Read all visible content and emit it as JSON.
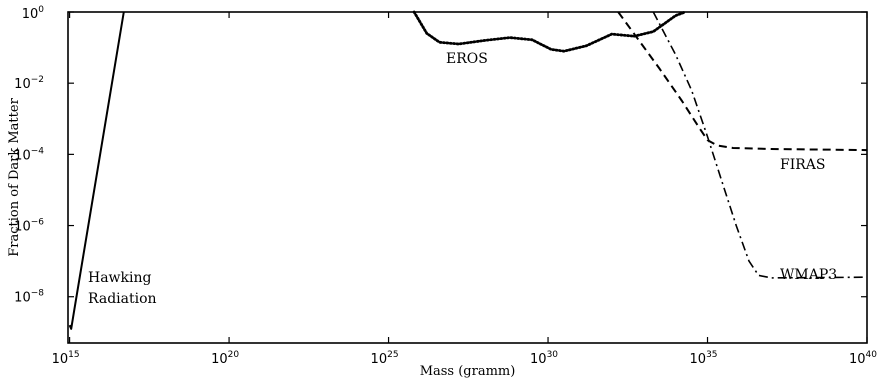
{
  "chart_data": {
    "type": "line",
    "xlabel": "Mass (gramm)",
    "ylabel": "Fraction of Dark Matter",
    "xscale": "log",
    "yscale": "log",
    "xlim_exp": [
      14.95,
      40.0
    ],
    "ylim_exp": [
      -9.3,
      0
    ],
    "x_ticks": [
      {
        "base": "10",
        "exp": "15",
        "value": 15
      },
      {
        "base": "10",
        "exp": "20",
        "value": 20
      },
      {
        "base": "10",
        "exp": "25",
        "value": 25
      },
      {
        "base": "10",
        "exp": "30",
        "value": 30
      },
      {
        "base": "10",
        "exp": "35",
        "value": 35
      },
      {
        "base": "10",
        "exp": "40",
        "value": 40
      }
    ],
    "y_ticks": [
      {
        "base": "10",
        "exp": "0",
        "value": 0
      },
      {
        "base": "10",
        "exp": "−2",
        "value": -2
      },
      {
        "base": "10",
        "exp": "−4",
        "value": -4
      },
      {
        "base": "10",
        "exp": "−6",
        "value": -6
      },
      {
        "base": "10",
        "exp": "−8",
        "value": -8
      }
    ],
    "series": [
      {
        "label_lines": [
          "Hawking",
          "Radiation"
        ],
        "style": "solid",
        "points": [
          [
            15.0,
            -8.8
          ],
          [
            15.05,
            -8.9
          ],
          [
            15.15,
            -8.35
          ],
          [
            16.7,
            0
          ]
        ]
      },
      {
        "label_lines": [
          "EROS"
        ],
        "style": "dotted",
        "points": [
          [
            25.8,
            0
          ],
          [
            26.2,
            -0.6
          ],
          [
            26.6,
            -0.85
          ],
          [
            27.2,
            -0.9
          ],
          [
            28.0,
            -0.8
          ],
          [
            28.8,
            -0.72
          ],
          [
            29.5,
            -0.78
          ],
          [
            30.1,
            -1.05
          ],
          [
            30.5,
            -1.1
          ],
          [
            31.2,
            -0.95
          ],
          [
            32.0,
            -0.62
          ],
          [
            32.7,
            -0.68
          ],
          [
            33.3,
            -0.55
          ],
          [
            34.0,
            -0.1
          ],
          [
            34.3,
            0
          ]
        ]
      },
      {
        "label_lines": [
          "FIRAS"
        ],
        "style": "dashed",
        "points": [
          [
            32.2,
            0
          ],
          [
            33.5,
            -1.6
          ],
          [
            34.2,
            -2.5
          ],
          [
            34.7,
            -3.2
          ],
          [
            35.0,
            -3.6
          ],
          [
            35.3,
            -3.75
          ],
          [
            35.8,
            -3.82
          ],
          [
            37.0,
            -3.85
          ],
          [
            40.0,
            -3.88
          ]
        ]
      },
      {
        "label_lines": [
          "WMAP3"
        ],
        "style": "dashdot",
        "points": [
          [
            33.3,
            0
          ],
          [
            34.0,
            -1.2
          ],
          [
            34.5,
            -2.2
          ],
          [
            35.0,
            -3.5
          ],
          [
            35.5,
            -4.9
          ],
          [
            35.9,
            -6.0
          ],
          [
            36.3,
            -7.0
          ],
          [
            36.6,
            -7.4
          ],
          [
            37.0,
            -7.47
          ],
          [
            40.0,
            -7.45
          ]
        ]
      }
    ]
  }
}
